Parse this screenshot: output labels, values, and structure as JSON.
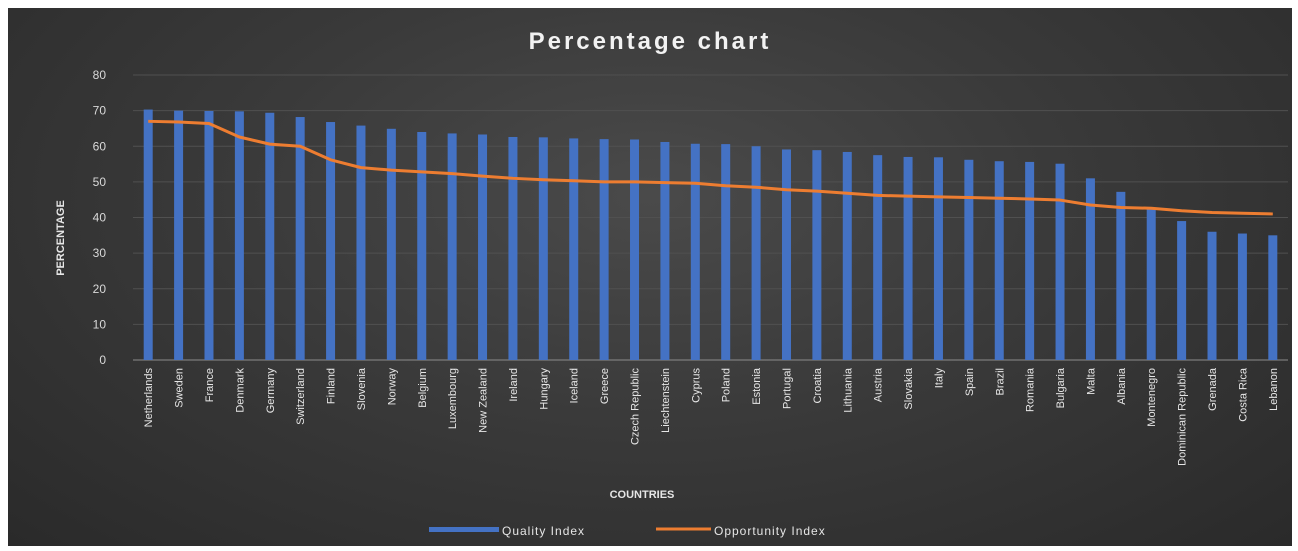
{
  "chart_data": {
    "type": "bar",
    "title": "Percentage chart",
    "xlabel": "COUNTRIES",
    "ylabel": "PERCENTAGE",
    "ylim": [
      0,
      80
    ],
    "yticks": [
      0,
      10,
      20,
      30,
      40,
      50,
      60,
      70,
      80
    ],
    "grid": true,
    "legend_position": "bottom",
    "categories": [
      "Netherlands",
      "Sweden",
      "France",
      "Denmark",
      "Germany",
      "Switzerland",
      "Finland",
      "Slovenia",
      "Norway",
      "Belgium",
      "Luxembourg",
      "New Zealand",
      "Ireland",
      "Hungary",
      "Iceland",
      "Greece",
      "Czech Republic",
      "Liechtenstein",
      "Cyprus",
      "Poland",
      "Estonia",
      "Portugal",
      "Croatia",
      "Lithuania",
      "Austria",
      "Slovakia",
      "Italy",
      "Spain",
      "Brazil",
      "Romania",
      "Bulgaria",
      "Malta",
      "Albania",
      "Montenegro",
      "Dominican Republic",
      "Grenada",
      "Costa Rica",
      "Lebanon"
    ],
    "series": [
      {
        "name": "Quality Index",
        "kind": "bar",
        "color": "#4472c4",
        "values": [
          70.3,
          70.0,
          69.9,
          69.8,
          69.4,
          68.2,
          66.8,
          65.8,
          64.9,
          64.0,
          63.6,
          63.3,
          62.6,
          62.5,
          62.2,
          62.0,
          61.9,
          61.2,
          60.7,
          60.6,
          60.0,
          59.1,
          58.9,
          58.4,
          57.5,
          57.0,
          56.9,
          56.2,
          55.8,
          55.6,
          55.1,
          51.0,
          47.2,
          42.5,
          39.0,
          36.0,
          35.5,
          35.0
        ]
      },
      {
        "name": "Opportunity Index",
        "kind": "line",
        "color": "#ed7d31",
        "values": [
          67.0,
          66.8,
          66.4,
          62.6,
          60.6,
          60.0,
          56.2,
          54.0,
          53.3,
          52.8,
          52.3,
          51.6,
          51.0,
          50.6,
          50.3,
          50.0,
          50.0,
          49.8,
          49.6,
          48.9,
          48.5,
          47.8,
          47.4,
          46.8,
          46.2,
          46.0,
          45.8,
          45.6,
          45.4,
          45.2,
          44.9,
          43.5,
          42.8,
          42.6,
          41.9,
          41.4,
          41.2,
          41.0
        ]
      }
    ]
  }
}
